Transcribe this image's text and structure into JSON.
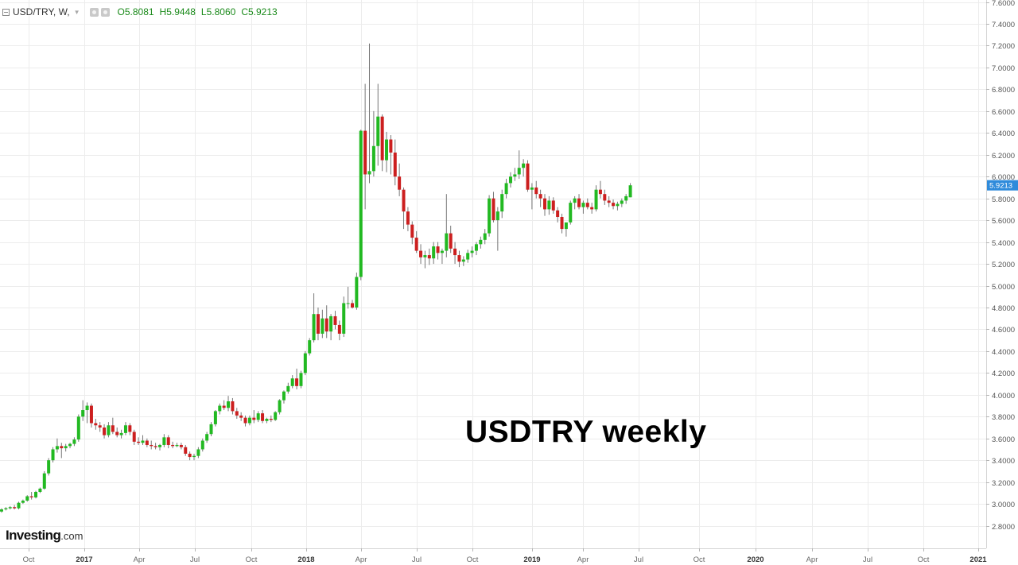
{
  "header": {
    "symbol": "USD/TRY, W,",
    "open": "O5.8081",
    "high": "H5.9448",
    "low": "L5.8060",
    "close": "C5.9213"
  },
  "annotation": "USDTRY weekly",
  "logo": {
    "name": "Investing",
    "suffix": ".com"
  },
  "colors": {
    "up": "#22b922",
    "down": "#cc1f1f",
    "wick": "#777777",
    "grid": "#ececec",
    "last_price_bg": "#2f8bdb"
  },
  "chart_data": {
    "type": "candlestick",
    "title": "USDTRY weekly",
    "symbol": "USD/TRY",
    "interval": "W",
    "ylim": [
      2.7,
      7.7
    ],
    "y_ticks": [
      "2.8000",
      "3.0000",
      "3.2000",
      "3.4000",
      "3.6000",
      "3.8000",
      "4.0000",
      "4.2000",
      "4.4000",
      "4.6000",
      "4.8000",
      "5.0000",
      "5.2000",
      "5.4000",
      "5.6000",
      "5.8000",
      "6.0000",
      "6.2000",
      "6.4000",
      "6.6000",
      "6.8000",
      "7.0000",
      "7.2000",
      "7.4000",
      "7.6000"
    ],
    "x_ticks": [
      {
        "label": "Oct",
        "bold": false
      },
      {
        "label": "2017",
        "bold": true
      },
      {
        "label": "Apr",
        "bold": false
      },
      {
        "label": "Jul",
        "bold": false
      },
      {
        "label": "Oct",
        "bold": false
      },
      {
        "label": "2018",
        "bold": true
      },
      {
        "label": "Apr",
        "bold": false
      },
      {
        "label": "Jul",
        "bold": false
      },
      {
        "label": "Oct",
        "bold": false
      },
      {
        "label": "2019",
        "bold": true
      },
      {
        "label": "Apr",
        "bold": false
      },
      {
        "label": "Jul",
        "bold": false
      },
      {
        "label": "Oct",
        "bold": false
      },
      {
        "label": "2020",
        "bold": true
      },
      {
        "label": "Apr",
        "bold": false
      },
      {
        "label": "Jul",
        "bold": false
      },
      {
        "label": "Oct",
        "bold": false
      },
      {
        "label": "2021",
        "bold": true
      }
    ],
    "last_price": "5.9213",
    "grid": true,
    "candles": [
      [
        2.93,
        2.96,
        2.92,
        2.95
      ],
      [
        2.95,
        2.97,
        2.94,
        2.96
      ],
      [
        2.96,
        2.98,
        2.95,
        2.97
      ],
      [
        2.97,
        2.99,
        2.95,
        2.96
      ],
      [
        2.96,
        3.02,
        2.95,
        3.01
      ],
      [
        3.01,
        3.04,
        3.0,
        3.03
      ],
      [
        3.03,
        3.08,
        3.02,
        3.07
      ],
      [
        3.07,
        3.11,
        3.04,
        3.06
      ],
      [
        3.06,
        3.12,
        3.05,
        3.11
      ],
      [
        3.11,
        3.15,
        3.1,
        3.14
      ],
      [
        3.14,
        3.3,
        3.13,
        3.28
      ],
      [
        3.28,
        3.42,
        3.26,
        3.4
      ],
      [
        3.4,
        3.52,
        3.38,
        3.5
      ],
      [
        3.5,
        3.6,
        3.47,
        3.53
      ],
      [
        3.53,
        3.56,
        3.42,
        3.51
      ],
      [
        3.51,
        3.55,
        3.48,
        3.53
      ],
      [
        3.53,
        3.56,
        3.51,
        3.55
      ],
      [
        3.55,
        3.61,
        3.53,
        3.59
      ],
      [
        3.59,
        3.82,
        3.57,
        3.8
      ],
      [
        3.8,
        3.95,
        3.76,
        3.86
      ],
      [
        3.86,
        3.93,
        3.74,
        3.9
      ],
      [
        3.9,
        3.92,
        3.7,
        3.74
      ],
      [
        3.74,
        3.78,
        3.68,
        3.72
      ],
      [
        3.72,
        3.75,
        3.66,
        3.7
      ],
      [
        3.7,
        3.73,
        3.6,
        3.63
      ],
      [
        3.63,
        3.75,
        3.61,
        3.72
      ],
      [
        3.72,
        3.79,
        3.64,
        3.66
      ],
      [
        3.66,
        3.7,
        3.61,
        3.63
      ],
      [
        3.63,
        3.68,
        3.6,
        3.65
      ],
      [
        3.65,
        3.75,
        3.63,
        3.72
      ],
      [
        3.72,
        3.74,
        3.63,
        3.66
      ],
      [
        3.66,
        3.68,
        3.54,
        3.57
      ],
      [
        3.57,
        3.61,
        3.54,
        3.56
      ],
      [
        3.56,
        3.63,
        3.54,
        3.58
      ],
      [
        3.58,
        3.6,
        3.52,
        3.54
      ],
      [
        3.54,
        3.58,
        3.5,
        3.53
      ],
      [
        3.53,
        3.56,
        3.5,
        3.52
      ],
      [
        3.52,
        3.55,
        3.49,
        3.54
      ],
      [
        3.54,
        3.64,
        3.52,
        3.61
      ],
      [
        3.61,
        3.63,
        3.51,
        3.54
      ],
      [
        3.54,
        3.57,
        3.51,
        3.53
      ],
      [
        3.53,
        3.56,
        3.52,
        3.54
      ],
      [
        3.54,
        3.56,
        3.5,
        3.52
      ],
      [
        3.52,
        3.54,
        3.44,
        3.46
      ],
      [
        3.46,
        3.48,
        3.4,
        3.43
      ],
      [
        3.43,
        3.46,
        3.4,
        3.44
      ],
      [
        3.44,
        3.52,
        3.42,
        3.5
      ],
      [
        3.5,
        3.6,
        3.48,
        3.58
      ],
      [
        3.58,
        3.66,
        3.56,
        3.64
      ],
      [
        3.64,
        3.75,
        3.62,
        3.73
      ],
      [
        3.73,
        3.86,
        3.71,
        3.85
      ],
      [
        3.85,
        3.92,
        3.82,
        3.9
      ],
      [
        3.9,
        3.95,
        3.86,
        3.88
      ],
      [
        3.88,
        3.99,
        3.85,
        3.94
      ],
      [
        3.94,
        3.97,
        3.82,
        3.85
      ],
      [
        3.85,
        3.88,
        3.78,
        3.81
      ],
      [
        3.81,
        3.84,
        3.76,
        3.79
      ],
      [
        3.79,
        3.81,
        3.71,
        3.74
      ],
      [
        3.74,
        3.81,
        3.72,
        3.79
      ],
      [
        3.79,
        3.86,
        3.74,
        3.77
      ],
      [
        3.77,
        3.85,
        3.75,
        3.83
      ],
      [
        3.83,
        3.86,
        3.74,
        3.76
      ],
      [
        3.76,
        3.79,
        3.74,
        3.78
      ],
      [
        3.78,
        3.81,
        3.75,
        3.77
      ],
      [
        3.77,
        3.85,
        3.76,
        3.84
      ],
      [
        3.84,
        3.96,
        3.82,
        3.95
      ],
      [
        3.95,
        4.04,
        3.92,
        4.03
      ],
      [
        4.03,
        4.11,
        4.01,
        4.08
      ],
      [
        4.08,
        4.18,
        4.06,
        4.15
      ],
      [
        4.15,
        4.24,
        4.05,
        4.08
      ],
      [
        4.08,
        4.22,
        4.06,
        4.2
      ],
      [
        4.2,
        4.4,
        4.18,
        4.38
      ],
      [
        4.38,
        4.52,
        4.36,
        4.5
      ],
      [
        4.5,
        4.93,
        4.48,
        4.74
      ],
      [
        4.74,
        4.8,
        4.5,
        4.56
      ],
      [
        4.56,
        4.78,
        4.52,
        4.7
      ],
      [
        4.7,
        4.82,
        4.52,
        4.58
      ],
      [
        4.58,
        4.74,
        4.5,
        4.72
      ],
      [
        4.72,
        4.77,
        4.6,
        4.64
      ],
      [
        4.64,
        4.68,
        4.5,
        4.56
      ],
      [
        4.56,
        4.9,
        4.53,
        4.84
      ],
      [
        4.84,
        4.99,
        4.79,
        4.84
      ],
      [
        4.84,
        4.87,
        4.79,
        4.8
      ],
      [
        4.8,
        5.12,
        4.78,
        5.08
      ],
      [
        5.08,
        6.43,
        5.05,
        6.42
      ],
      [
        6.42,
        6.85,
        5.7,
        6.02
      ],
      [
        6.02,
        7.22,
        5.94,
        6.05
      ],
      [
        6.05,
        6.6,
        6.0,
        6.28
      ],
      [
        6.28,
        6.85,
        6.1,
        6.55
      ],
      [
        6.55,
        6.57,
        6.05,
        6.15
      ],
      [
        6.15,
        6.41,
        6.04,
        6.34
      ],
      [
        6.34,
        6.38,
        6.02,
        6.22
      ],
      [
        6.22,
        6.34,
        5.92,
        6.0
      ],
      [
        6.0,
        6.12,
        5.82,
        5.88
      ],
      [
        5.88,
        5.9,
        5.52,
        5.68
      ],
      [
        5.68,
        5.72,
        5.5,
        5.56
      ],
      [
        5.56,
        5.59,
        5.38,
        5.44
      ],
      [
        5.44,
        5.5,
        5.3,
        5.32
      ],
      [
        5.32,
        5.38,
        5.2,
        5.26
      ],
      [
        5.26,
        5.32,
        5.16,
        5.28
      ],
      [
        5.28,
        5.34,
        5.19,
        5.25
      ],
      [
        5.25,
        5.4,
        5.2,
        5.36
      ],
      [
        5.36,
        5.4,
        5.24,
        5.3
      ],
      [
        5.3,
        5.34,
        5.2,
        5.32
      ],
      [
        5.32,
        5.84,
        5.26,
        5.48
      ],
      [
        5.48,
        5.55,
        5.3,
        5.34
      ],
      [
        5.34,
        5.4,
        5.2,
        5.28
      ],
      [
        5.28,
        5.32,
        5.17,
        5.22
      ],
      [
        5.22,
        5.27,
        5.18,
        5.24
      ],
      [
        5.24,
        5.33,
        5.21,
        5.3
      ],
      [
        5.3,
        5.36,
        5.26,
        5.32
      ],
      [
        5.32,
        5.4,
        5.28,
        5.38
      ],
      [
        5.38,
        5.45,
        5.34,
        5.42
      ],
      [
        5.42,
        5.52,
        5.38,
        5.48
      ],
      [
        5.48,
        5.83,
        5.45,
        5.8
      ],
      [
        5.8,
        5.86,
        5.58,
        5.6
      ],
      [
        5.6,
        5.72,
        5.32,
        5.68
      ],
      [
        5.68,
        5.88,
        5.62,
        5.84
      ],
      [
        5.84,
        5.98,
        5.8,
        5.94
      ],
      [
        5.94,
        6.04,
        5.9,
        6.0
      ],
      [
        6.0,
        6.08,
        5.96,
        6.02
      ],
      [
        6.02,
        6.24,
        5.98,
        6.08
      ],
      [
        6.08,
        6.16,
        6.0,
        6.12
      ],
      [
        6.12,
        6.15,
        5.86,
        5.88
      ],
      [
        5.88,
        5.94,
        5.7,
        5.9
      ],
      [
        5.9,
        5.96,
        5.8,
        5.84
      ],
      [
        5.84,
        5.88,
        5.72,
        5.8
      ],
      [
        5.8,
        5.84,
        5.64,
        5.7
      ],
      [
        5.7,
        5.82,
        5.65,
        5.78
      ],
      [
        5.78,
        5.81,
        5.66,
        5.69
      ],
      [
        5.69,
        5.72,
        5.58,
        5.63
      ],
      [
        5.63,
        5.66,
        5.48,
        5.52
      ],
      [
        5.52,
        5.56,
        5.45,
        5.58
      ],
      [
        5.58,
        5.78,
        5.56,
        5.76
      ],
      [
        5.76,
        5.82,
        5.7,
        5.8
      ],
      [
        5.8,
        5.84,
        5.7,
        5.72
      ],
      [
        5.72,
        5.78,
        5.66,
        5.76
      ],
      [
        5.76,
        5.8,
        5.7,
        5.72
      ],
      [
        5.72,
        5.76,
        5.66,
        5.7
      ],
      [
        5.7,
        5.92,
        5.68,
        5.88
      ],
      [
        5.88,
        5.96,
        5.8,
        5.84
      ],
      [
        5.84,
        5.88,
        5.74,
        5.78
      ],
      [
        5.78,
        5.82,
        5.72,
        5.76
      ],
      [
        5.76,
        5.79,
        5.7,
        5.73
      ],
      [
        5.73,
        5.77,
        5.69,
        5.75
      ],
      [
        5.75,
        5.8,
        5.72,
        5.78
      ],
      [
        5.78,
        5.84,
        5.75,
        5.82
      ],
      [
        5.81,
        5.94,
        5.81,
        5.92
      ]
    ]
  }
}
